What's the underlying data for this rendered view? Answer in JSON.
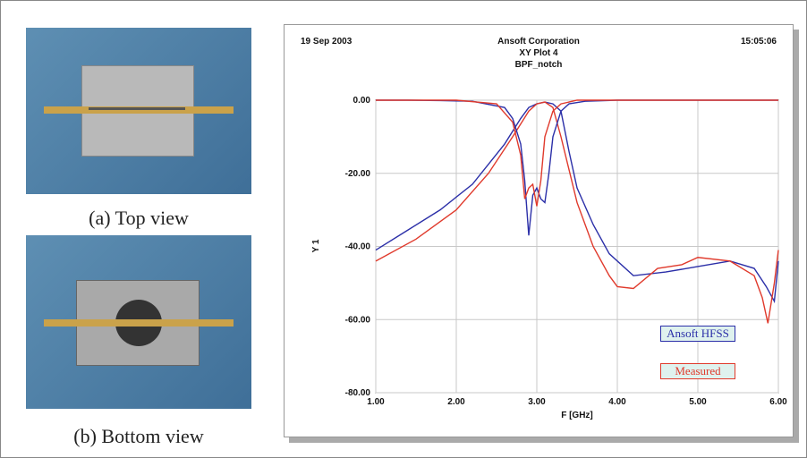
{
  "captions": {
    "top": "(a) Top view",
    "bottom": "(b) Bottom view"
  },
  "chart_data": {
    "type": "line",
    "date": "19 Sep 2003",
    "time": "15:05:06",
    "title": "Ansoft Corporation",
    "subtitle": "XY Plot 4",
    "design": "BPF_notch",
    "x_label": "F [GHz]",
    "y_label": "Y 1",
    "xlim": [
      1,
      6
    ],
    "ylim": [
      -80,
      0
    ],
    "xticks": [
      {
        "value": 1,
        "label": "1.00"
      },
      {
        "value": 2,
        "label": "2.00"
      },
      {
        "value": 3,
        "label": "3.00"
      },
      {
        "value": 4,
        "label": "4.00"
      },
      {
        "value": 5,
        "label": "5.00"
      },
      {
        "value": 6,
        "label": "6.00"
      }
    ],
    "yticks": [
      {
        "value": -80,
        "label": "-80.00"
      },
      {
        "value": -60,
        "label": "-60.00"
      },
      {
        "value": -40,
        "label": "-40.00"
      },
      {
        "value": -20,
        "label": "-20.00"
      },
      {
        "value": 0,
        "label": "0.00"
      }
    ],
    "grid": true,
    "series": [
      {
        "name": "Ansoft HFSS",
        "color": "#2b2fa8",
        "x": [
          1.0,
          1.4,
          1.8,
          2.2,
          2.6,
          2.8,
          2.9,
          3.0,
          3.1,
          3.2,
          3.3,
          3.4,
          3.5,
          3.7,
          3.9,
          4.2,
          4.6,
          5.0,
          5.4,
          5.7,
          5.85,
          5.95,
          6.0
        ],
        "values": [
          -41,
          -35.5,
          -30,
          -23,
          -12,
          -5,
          -2,
          -1,
          -0.5,
          -1,
          -3,
          -14,
          -24,
          -34,
          -42,
          -48,
          -47,
          -45.5,
          -44,
          -46,
          -51,
          -55,
          -44
        ]
      },
      {
        "name": "Measured",
        "color": "#e03a2c",
        "x": [
          1.0,
          1.5,
          2.0,
          2.4,
          2.7,
          2.9,
          3.0,
          3.1,
          3.2,
          3.3,
          3.5,
          3.7,
          3.9,
          4.0,
          4.2,
          4.5,
          4.8,
          5.0,
          5.4,
          5.7,
          5.8,
          5.87,
          5.95,
          6.0
        ],
        "values": [
          -44,
          -38,
          -30,
          -20,
          -10,
          -3,
          -1,
          -0.5,
          -2,
          -10,
          -28,
          -40,
          -48,
          -51,
          -51.5,
          -46,
          -45,
          -43,
          -44,
          -48,
          -54,
          -61,
          -50,
          -41
        ]
      },
      {
        "color": "#2b2fa8",
        "x": [
          1.0,
          1.4,
          1.8,
          2.2,
          2.6,
          2.7,
          2.8,
          2.85,
          2.9,
          2.95,
          3.0,
          3.05,
          3.1,
          3.15,
          3.2,
          3.3,
          3.4,
          3.6,
          4.0,
          4.5,
          5.0,
          5.5,
          6.0
        ],
        "values": [
          0,
          0,
          -0.1,
          -0.3,
          -2,
          -5,
          -12,
          -22,
          -37,
          -26,
          -24,
          -27,
          -28,
          -20,
          -10,
          -3,
          -1,
          -0.3,
          0,
          0,
          0,
          0,
          0
        ]
      },
      {
        "color": "#e03a2c",
        "x": [
          1.0,
          2.0,
          2.5,
          2.7,
          2.8,
          2.85,
          2.9,
          2.95,
          3.0,
          3.05,
          3.1,
          3.2,
          3.3,
          3.5,
          4.0,
          5.0,
          6.0
        ],
        "values": [
          0,
          0,
          -1,
          -6,
          -15,
          -27,
          -24,
          -23,
          -29,
          -22,
          -10,
          -3,
          -1,
          0,
          0,
          0,
          0
        ]
      }
    ]
  }
}
